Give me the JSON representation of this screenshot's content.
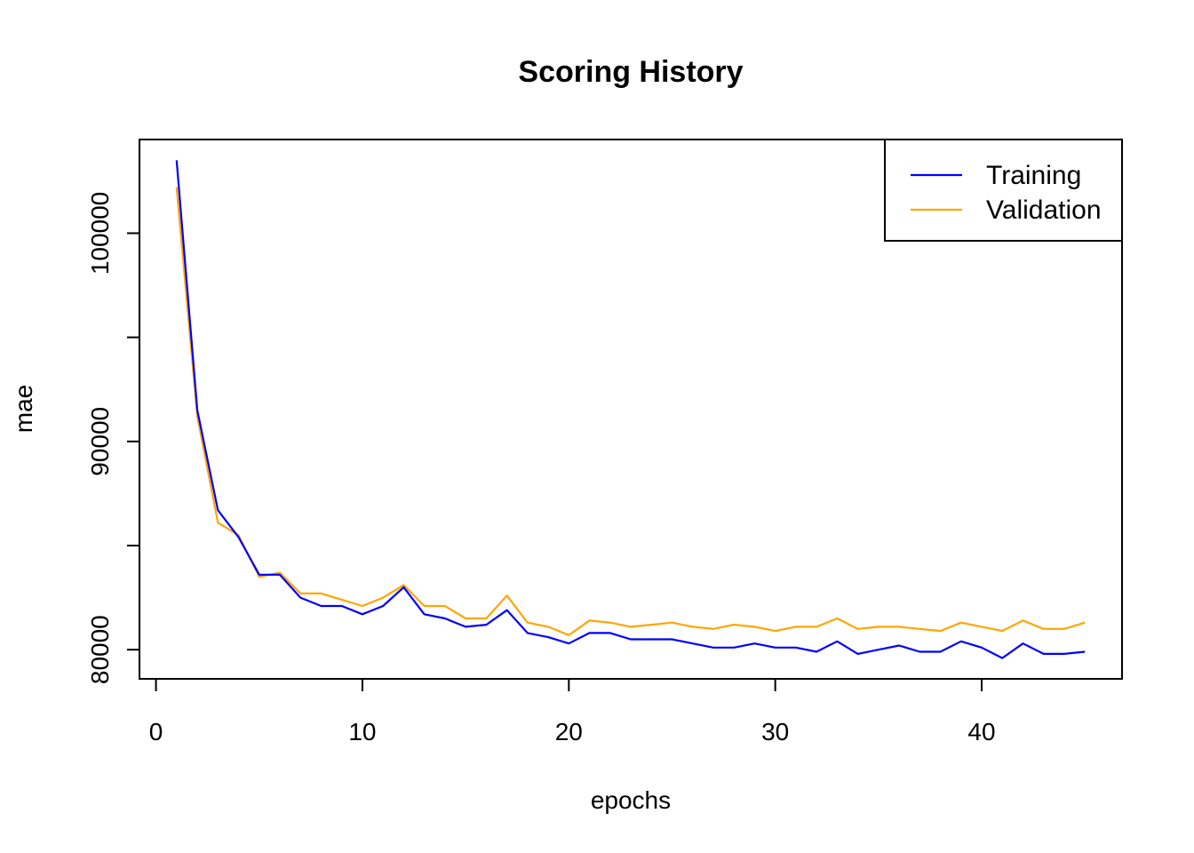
{
  "chart_data": {
    "type": "line",
    "title": "Scoring History",
    "xlabel": "epochs",
    "ylabel": "mae",
    "xlim": [
      -0.8,
      46.8
    ],
    "ylim": [
      78600,
      104500
    ],
    "xticks": [
      0,
      10,
      20,
      30,
      40
    ],
    "yticks": [
      80000,
      85000,
      90000,
      95000,
      100000
    ],
    "ytick_labels": [
      "80000",
      "",
      "90000",
      "",
      "100000"
    ],
    "legend": "top-right",
    "grid": false,
    "series": [
      {
        "name": "Training",
        "color": "#0000ff",
        "x": [
          1,
          2,
          3,
          4,
          5,
          6,
          7,
          8,
          9,
          10,
          11,
          12,
          13,
          14,
          15,
          16,
          17,
          18,
          19,
          20,
          21,
          22,
          23,
          24,
          25,
          26,
          27,
          28,
          29,
          30,
          31,
          32,
          33,
          34,
          35,
          36,
          37,
          38,
          39,
          40,
          41,
          42,
          43,
          44,
          45
        ],
        "values": [
          103500,
          91500,
          86700,
          85400,
          83600,
          83600,
          82500,
          82100,
          82100,
          81700,
          82100,
          83000,
          81700,
          81500,
          81100,
          81200,
          81900,
          80800,
          80600,
          80300,
          80800,
          80800,
          80500,
          80500,
          80500,
          80300,
          80100,
          80100,
          80300,
          80100,
          80100,
          79900,
          80400,
          79800,
          80000,
          80200,
          79900,
          79900,
          80400,
          80100,
          79600,
          80300,
          79800,
          79800,
          79900
        ]
      },
      {
        "name": "Validation",
        "color": "#ffa500",
        "x": [
          1,
          2,
          3,
          4,
          5,
          6,
          7,
          8,
          9,
          10,
          11,
          12,
          13,
          14,
          15,
          16,
          17,
          18,
          19,
          20,
          21,
          22,
          23,
          24,
          25,
          26,
          27,
          28,
          29,
          30,
          31,
          32,
          33,
          34,
          35,
          36,
          37,
          38,
          39,
          40,
          41,
          42,
          43,
          44,
          45
        ],
        "values": [
          102200,
          91200,
          86100,
          85500,
          83500,
          83700,
          82700,
          82700,
          82400,
          82100,
          82500,
          83100,
          82100,
          82100,
          81500,
          81500,
          82600,
          81300,
          81100,
          80700,
          81400,
          81300,
          81100,
          81200,
          81300,
          81100,
          81000,
          81200,
          81100,
          80900,
          81100,
          81100,
          81500,
          81000,
          81100,
          81100,
          81000,
          80900,
          81300,
          81100,
          80900,
          81400,
          81000,
          81000,
          81300
        ]
      }
    ]
  }
}
